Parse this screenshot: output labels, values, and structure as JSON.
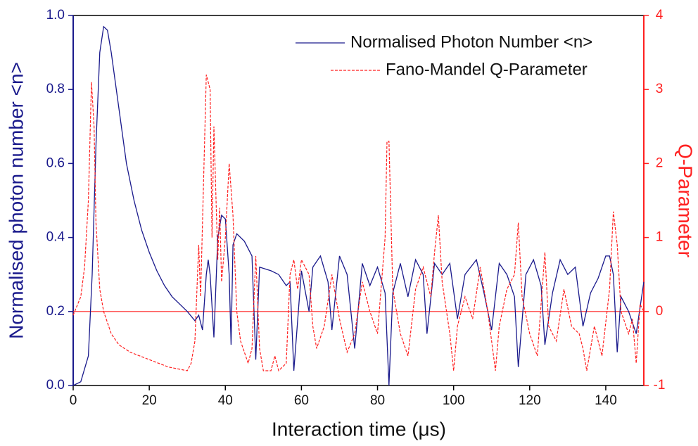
{
  "chart_data": {
    "type": "line",
    "xlabel": "Interaction time (μs)",
    "ylabel": "Normalised photon number <n>",
    "y2label": "Q-Parameter",
    "xlim": [
      0,
      150
    ],
    "xticks": [
      0,
      20,
      40,
      60,
      80,
      100,
      120,
      140
    ],
    "ylim": [
      0,
      1
    ],
    "yticks": [
      {
        "value": 0,
        "label": "0.0"
      },
      {
        "value": 0.2,
        "label": "0.2"
      },
      {
        "value": 0.4,
        "label": "0.4"
      },
      {
        "value": 0.6,
        "label": "0.6"
      },
      {
        "value": 0.8,
        "label": "0.8"
      },
      {
        "value": 1,
        "label": "1.0"
      }
    ],
    "y2lim": [
      -1,
      4
    ],
    "y2ticks": [
      -1,
      0,
      1,
      2,
      3,
      4
    ],
    "hline_y2": 0,
    "legend": "top-right",
    "series": [
      {
        "name": "Normalised Photon Number <n>",
        "color": "#1a1a8c",
        "dash": false,
        "x": [
          0,
          2,
          4,
          5,
          6,
          7,
          8,
          9,
          10,
          12,
          14,
          16,
          18,
          20,
          22,
          24,
          26,
          28,
          30,
          32,
          33,
          34,
          35,
          35.5,
          36,
          37,
          38,
          39,
          40,
          41,
          41.5,
          42,
          43,
          45,
          47,
          48,
          49,
          52,
          54,
          56,
          57,
          58,
          60,
          62,
          63,
          65,
          67,
          68,
          70,
          72,
          74,
          76,
          78,
          80,
          82,
          83,
          84,
          86,
          88,
          90,
          92,
          93,
          95,
          97,
          99,
          101,
          103,
          106,
          108,
          110,
          112,
          114,
          116,
          117,
          119,
          121,
          123,
          124,
          126,
          128,
          130,
          132,
          134,
          136,
          138,
          140,
          141,
          142,
          143,
          144,
          146,
          148,
          150
        ],
        "values": [
          0,
          0.01,
          0.08,
          0.3,
          0.65,
          0.9,
          0.97,
          0.96,
          0.9,
          0.75,
          0.6,
          0.5,
          0.42,
          0.36,
          0.31,
          0.27,
          0.24,
          0.22,
          0.2,
          0.175,
          0.19,
          0.15,
          0.3,
          0.34,
          0.3,
          0.13,
          0.4,
          0.46,
          0.45,
          0.3,
          0.11,
          0.38,
          0.41,
          0.39,
          0.35,
          0.07,
          0.32,
          0.31,
          0.3,
          0.27,
          0.28,
          0.04,
          0.31,
          0.2,
          0.32,
          0.35,
          0.28,
          0.15,
          0.35,
          0.3,
          0.1,
          0.33,
          0.27,
          0.32,
          0.25,
          0,
          0.25,
          0.33,
          0.24,
          0.34,
          0.3,
          0.14,
          0.33,
          0.3,
          0.33,
          0.18,
          0.3,
          0.34,
          0.25,
          0.15,
          0.33,
          0.3,
          0.24,
          0.05,
          0.3,
          0.34,
          0.27,
          0.11,
          0.25,
          0.34,
          0.3,
          0.32,
          0.16,
          0.25,
          0.29,
          0.35,
          0.35,
          0.3,
          0.09,
          0.24,
          0.2,
          0.14,
          0.28
        ]
      },
      {
        "name": "Fano-Mandel Q-Parameter",
        "color": "#ff2020",
        "dash": true,
        "axis": "y2",
        "x": [
          0,
          2,
          3,
          4,
          4.8,
          5.5,
          6,
          7,
          8,
          10,
          12,
          15,
          20,
          25,
          30,
          31,
          32,
          33,
          33.5,
          34,
          35,
          36,
          36.5,
          37,
          38,
          38.5,
          39,
          40,
          41,
          42,
          43,
          44,
          46,
          47,
          48,
          49,
          50,
          52,
          53,
          54,
          56,
          57,
          58,
          59,
          60,
          62,
          63,
          64,
          66,
          68,
          70,
          72,
          74,
          76,
          78,
          80,
          82,
          82.5,
          83,
          84,
          86,
          88,
          90,
          92,
          94,
          95,
          96,
          97,
          99,
          100,
          101,
          103,
          105,
          107,
          109,
          111,
          112,
          114,
          116,
          117,
          118,
          120,
          122,
          124,
          125,
          127,
          129,
          131,
          133,
          134,
          135,
          137,
          139,
          141,
          142,
          143,
          144,
          146,
          147,
          148,
          149,
          150
        ],
        "values": [
          -0.05,
          0.2,
          0.6,
          1.5,
          3.1,
          2.5,
          1.2,
          0.3,
          0,
          -0.3,
          -0.45,
          -0.55,
          -0.65,
          -0.75,
          -0.8,
          -0.7,
          -0.4,
          0.9,
          0.2,
          1.2,
          3.2,
          3,
          1,
          2.5,
          0.7,
          1.4,
          0.4,
          1,
          2,
          1.3,
          0,
          -0.4,
          -0.7,
          -0.5,
          0.75,
          -0.5,
          -0.8,
          -0.8,
          -0.6,
          -0.8,
          -0.7,
          0.5,
          0.7,
          0.3,
          0.7,
          0.5,
          -0.2,
          -0.5,
          -0.2,
          0.5,
          -0.1,
          -0.55,
          -0.3,
          0.4,
          0,
          -0.3,
          1,
          2.3,
          2.3,
          0.3,
          -0.3,
          -0.6,
          0.3,
          0.6,
          0.2,
          0.8,
          1.3,
          0.4,
          -0.3,
          -0.8,
          -0.2,
          0.2,
          -0.1,
          0.6,
          0,
          -0.8,
          -0.2,
          0.3,
          0.5,
          1.2,
          0.2,
          -0.3,
          -0.6,
          0.8,
          -0.2,
          -0.4,
          0.3,
          -0.2,
          -0.3,
          -0.5,
          -0.8,
          -0.2,
          -0.6,
          0.3,
          1.35,
          0.9,
          0,
          -0.3,
          -0.1,
          -0.7,
          0.1,
          0
        ]
      }
    ]
  }
}
